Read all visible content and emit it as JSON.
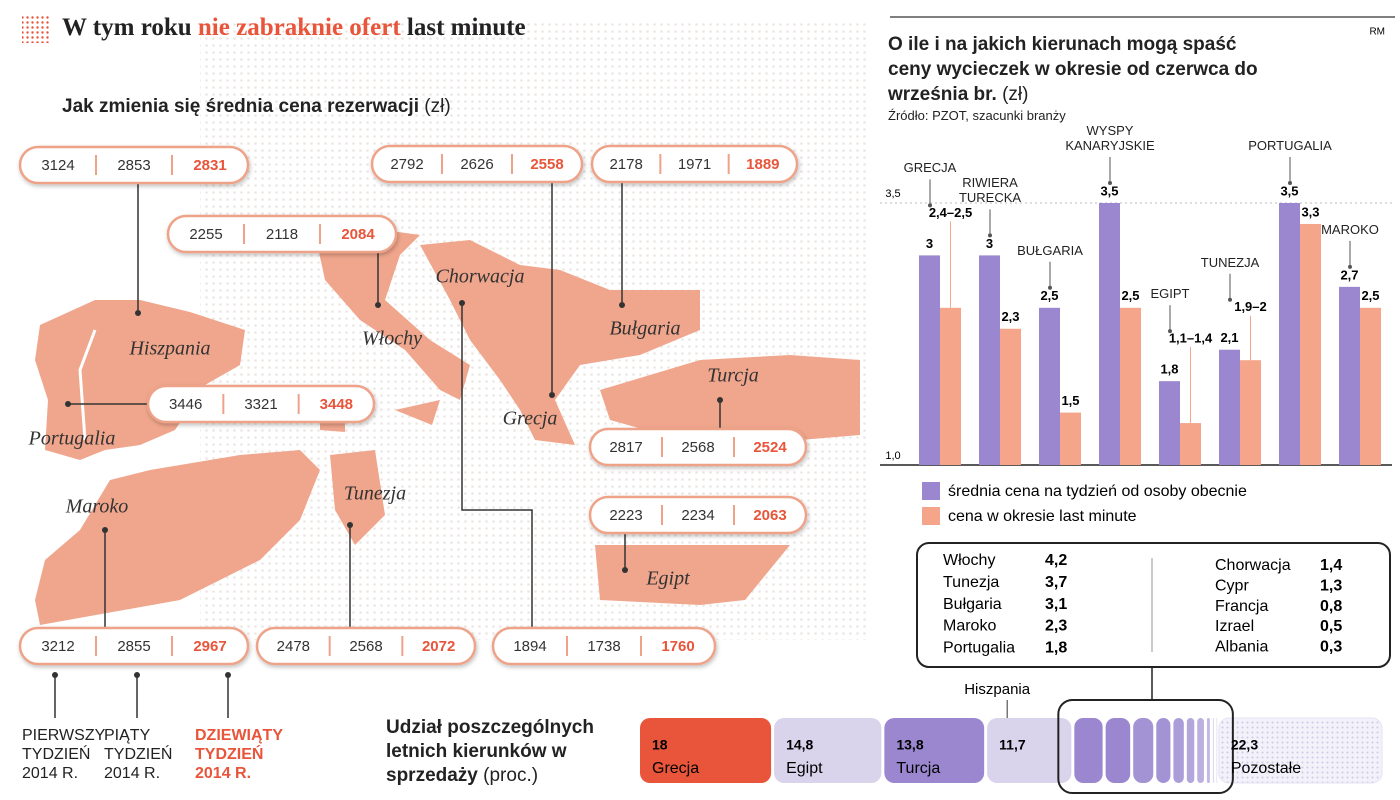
{
  "header": {
    "title": [
      "W tym roku",
      "nie zabraknie ofert",
      "last minute"
    ],
    "credit": "RM"
  },
  "map": {
    "subtitle": "Jak zmienia się średnia cena rezerwacji",
    "unit": "(zł)",
    "regions": [
      {
        "name": "Hiszpania",
        "prices": [
          3124,
          2853,
          2831
        ]
      },
      {
        "name": "Włochy",
        "prices": [
          2255,
          2118,
          2084
        ]
      },
      {
        "name": "Grecja",
        "prices": [
          2792,
          2626,
          2558
        ]
      },
      {
        "name": "Bułgaria",
        "prices": [
          2178,
          1971,
          1889
        ]
      },
      {
        "name": "Portugalia",
        "prices": [
          3446,
          3321,
          3448
        ]
      },
      {
        "name": "Turcja",
        "prices": [
          2817,
          2568,
          2524
        ]
      },
      {
        "name": "Egipt",
        "prices": [
          2223,
          2234,
          2063
        ]
      },
      {
        "name": "Maroko",
        "prices": [
          3212,
          2855,
          2967
        ]
      },
      {
        "name": "Tunezja",
        "prices": [
          2478,
          2568,
          2072
        ]
      },
      {
        "name": "Chorwacja",
        "prices": [
          1894,
          1738,
          1760
        ]
      }
    ],
    "legend": [
      "PIERWSZY TYDZIEŃ 2014 R.",
      "PIĄTY TYDZIEŃ 2014 R.",
      "DZIEWIĄTY TYDZIEŃ 2014 R."
    ]
  },
  "chart_data": [
    {
      "type": "bar",
      "title": "O ile i na jakich kierunach mogą spaść ceny wycieczek w okresie od czerwca do września br.",
      "unit": "(zł)",
      "source": "Źródło: PZOT, szacunki branży",
      "categories": [
        "GRECJA",
        "RIWIERA TURECKA",
        "BUŁGARIA",
        "WYSPY KANARYJSKIE",
        "EGIPT",
        "TUNEZJA",
        "PORTUGALIA",
        "MAROKO"
      ],
      "series": [
        {
          "name": "średnia cena na tydzień od osoby obecnie",
          "color": "#9b87cf",
          "values": [
            3,
            3,
            2.5,
            3.5,
            1.8,
            2.1,
            3.5,
            2.7
          ],
          "value_labels": [
            "3",
            "3",
            "2,5",
            "3,5",
            "1,8",
            "2,1",
            "3,5",
            "2,7"
          ]
        },
        {
          "name": "cena w okresie last minute",
          "color": "#f4a58a",
          "values": [
            2.5,
            2.3,
            1.5,
            2.5,
            1.4,
            2,
            3.3,
            2.5
          ],
          "value_labels": [
            "2,4–2,5",
            "2,3",
            "1,5",
            "2,5",
            "1,1–1,4",
            "1,9–2",
            "3,3",
            "2,5"
          ]
        }
      ],
      "ylim": [
        1,
        3.5
      ],
      "yticks": [
        {
          "value": 1,
          "label": "1,0"
        },
        {
          "value": 3.5,
          "label": "3,5"
        }
      ]
    },
    {
      "type": "stacked-bar",
      "orientation": "horizontal",
      "title": "Udział poszczególnych letnich kierunków w sprzedaży",
      "unit": "(proc.)",
      "categories": [
        "Grecja",
        "Egipt",
        "Turcja",
        "Hiszpania",
        "Włochy",
        "Tunezja",
        "Bułgaria",
        "Maroko",
        "Portugalia",
        "Chorwacja",
        "Cypr",
        "Francja",
        "Izrael",
        "Albania",
        "Pozostałe"
      ],
      "values": [
        18,
        14.8,
        13.8,
        11.7,
        4.2,
        3.7,
        3.1,
        2.3,
        1.8,
        1.4,
        1.3,
        0.8,
        0.5,
        0.3,
        22.3
      ],
      "value_labels": [
        "18",
        "14,8",
        "13,8",
        "11,7",
        "4,2",
        "3,7",
        "3,1",
        "2,3",
        "1,8",
        "1,4",
        "1,3",
        "0,8",
        "0,5",
        "0,3",
        "22,3"
      ],
      "colors": [
        "#e8553a",
        "#d9d3ec",
        "#9b87cf",
        "#d9d3ec",
        "#9b87cf",
        "#9b87cf",
        "#a393d4",
        "#a393d4",
        "#ab9dd8",
        "#b3a6dc",
        "#bbb0e0",
        "#c3b9e4",
        "#cbc3e8",
        "#d3ccec",
        "#e6e2f2"
      ]
    }
  ]
}
